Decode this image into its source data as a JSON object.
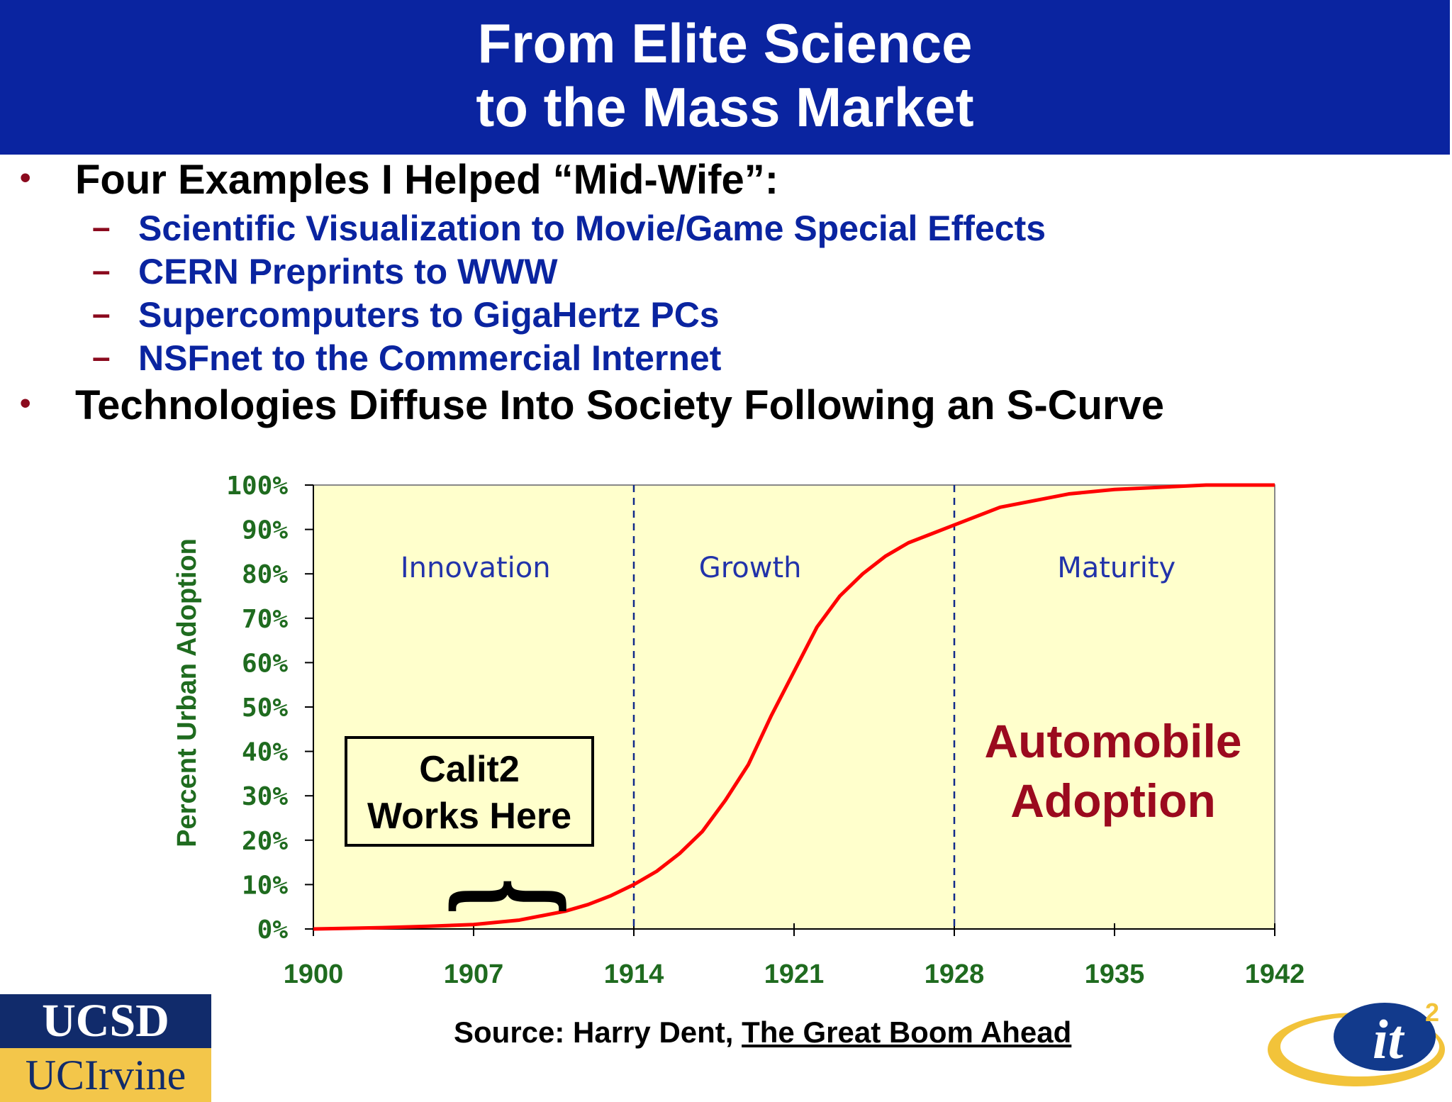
{
  "title": {
    "line1": "From Elite Science",
    "line2": "to the Mass Market"
  },
  "bullets": [
    {
      "text": "Four Examples I Helped “Mid-Wife”:",
      "subitems": [
        "Scientific Visualization to Movie/Game Special Effects",
        "CERN Preprints to WWW",
        "Supercomputers to GigaHertz PCs",
        "NSFnet to the Commercial Internet"
      ]
    },
    {
      "text": "Technologies Diffuse Into Society Following an S-Curve",
      "subitems": []
    }
  ],
  "bullet_symbol": "•",
  "dash_symbol": "–",
  "chart_data": {
    "type": "line",
    "ylabel": "Percent Urban Adoption",
    "xlim": [
      1900,
      1942
    ],
    "ylim": [
      0,
      100
    ],
    "x_ticks": [
      "1900",
      "1907",
      "1914",
      "1921",
      "1928",
      "1935",
      "1942"
    ],
    "y_ticks": [
      "0%",
      "10%",
      "20%",
      "30%",
      "40%",
      "50%",
      "60%",
      "70%",
      "80%",
      "90%",
      "100%"
    ],
    "phase_dividers": [
      1914,
      1928
    ],
    "phases": [
      {
        "label": "Innovation",
        "x": 1906
      },
      {
        "label": "Growth",
        "x": 1918
      },
      {
        "label": "Maturity",
        "x": 1934
      }
    ],
    "series": [
      {
        "name": "Automobile Adoption",
        "x": [
          1900,
          1903,
          1905,
          1907,
          1909,
          1911,
          1912,
          1913,
          1914,
          1915,
          1916,
          1917,
          1918,
          1919,
          1920,
          1921,
          1922,
          1923,
          1924,
          1925,
          1926,
          1927,
          1928,
          1929,
          1930,
          1931,
          1932,
          1933,
          1935,
          1937,
          1939,
          1942
        ],
        "values": [
          0,
          0.3,
          0.6,
          1,
          2,
          4,
          5.5,
          7.5,
          10,
          13,
          17,
          22,
          29,
          37,
          48,
          58,
          68,
          75,
          80,
          84,
          87,
          89,
          91,
          93,
          95,
          96,
          97,
          98,
          99,
          99.5,
          100,
          100
        ]
      }
    ],
    "annotations": [
      {
        "id": "calit2",
        "text_lines": [
          "Calit2",
          "Works Here"
        ],
        "brace": "{"
      },
      {
        "id": "series_label",
        "text_lines": [
          "Automobile",
          "Adoption"
        ]
      }
    ],
    "colors": {
      "plot_bg": "#ffffcc",
      "line": "#ff0000",
      "axis_text": "#1f6b1f",
      "phase_text": "#2233aa",
      "annotation_red": "#9b0a1e"
    }
  },
  "source": {
    "prefix": "Source: Harry Dent, ",
    "book": "The Great Boom Ahead"
  },
  "logos": {
    "ucsd": "UCSD",
    "uci": "UCIrvine",
    "it2_main": "it",
    "it2_sup": "2"
  }
}
